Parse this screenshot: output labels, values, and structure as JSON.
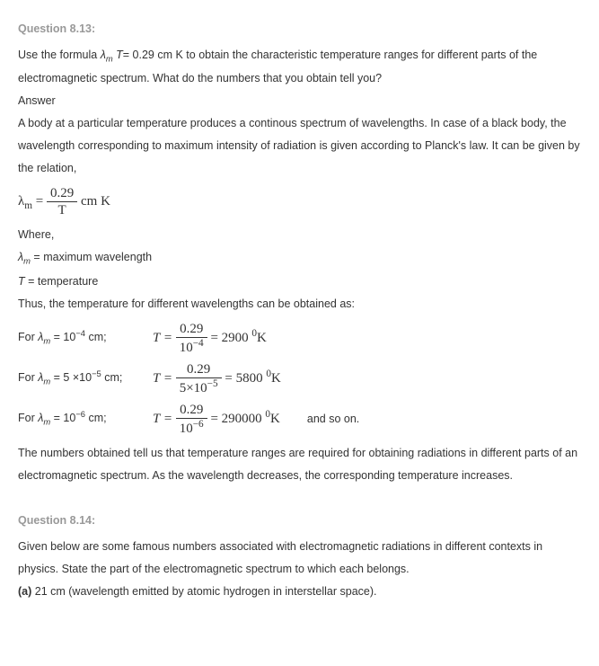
{
  "q13": {
    "header": "Question 8.13:",
    "prompt_a": "Use the formula ",
    "prompt_var": "λ",
    "prompt_sub": "m",
    "prompt_b": " T",
    "prompt_c": "= 0.29 cm K to obtain the characteristic temperature ranges for different parts of the electromagnetic spectrum. What do the numbers that you obtain tell you?",
    "answer_label": "Answer",
    "body1": "A body at a particular temperature produces a continous spectrum of wavelengths. In case of a black body, the wavelength corresponding to maximum intensity of radiation is given according to Planck's law. It can be given by the relation,",
    "main_formula": {
      "lhs": "λ",
      "lhs_sub": "m",
      "eq": " = ",
      "num": "0.29",
      "den": "T",
      "unit": " cm K"
    },
    "where": "Where,",
    "def1a": "λ",
    "def1b": "m",
    "def1c": " = maximum wavelength",
    "def2a": "T",
    "def2b": " = temperature",
    "thus": "Thus, the temperature for different wavelengths can be obtained as:",
    "rows": [
      {
        "label_a": "For ",
        "label_var": "λ",
        "label_sub": "m",
        "label_b": " = 10",
        "label_exp": "−4",
        "label_c": " cm;",
        "eq_lhs": "T = ",
        "num": "0.29",
        "den_a": "10",
        "den_exp": "−4",
        "rhs": " = 2900 ",
        "rhs_sup": "0",
        "rhs_unit": "K",
        "after": ""
      },
      {
        "label_a": "For ",
        "label_var": "λ",
        "label_sub": "m",
        "label_b": " = 5 ×10",
        "label_exp": "−5",
        "label_c": " cm;",
        "eq_lhs": "T = ",
        "num": "0.29",
        "den_a": "5×10",
        "den_exp": "−5",
        "rhs": " = 5800 ",
        "rhs_sup": "0",
        "rhs_unit": "K",
        "after": ""
      },
      {
        "label_a": "For ",
        "label_var": "λ",
        "label_sub": "m",
        "label_b": " = 10",
        "label_exp": "−6",
        "label_c": " cm;",
        "eq_lhs": "T = ",
        "num": "0.29",
        "den_a": "10",
        "den_exp": "−6",
        "rhs": " = 290000 ",
        "rhs_sup": "0",
        "rhs_unit": "K",
        "after": "and so on."
      }
    ],
    "conclusion": "The numbers obtained tell us that temperature ranges are required for obtaining radiations in different parts of an electromagnetic spectrum. As the wavelength decreases, the corresponding temperature increases."
  },
  "q14": {
    "header": "Question 8.14:",
    "body": "Given below are some famous numbers associated with electromagnetic radiations in different contexts in physics. State the part of the electromagnetic spectrum to which each belongs.",
    "part_a_label": "(a)",
    "part_a_text": " 21 cm (wavelength emitted by atomic hydrogen in interstellar space)."
  }
}
